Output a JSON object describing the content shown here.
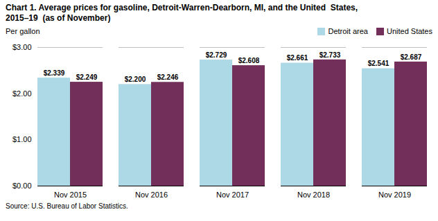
{
  "chart_data": {
    "type": "bar",
    "title": "Chart 1. Average prices for gasoline, Detroit-Warren-Dearborn, MI, and the United  States,\n2015–19  (as of November)",
    "y_label": "Per gallon",
    "source": "Source: U.S. Bureau of Labor Statistics.",
    "categories": [
      "Nov 2015",
      "Nov 2016",
      "Nov 2017",
      "Nov 2018",
      "Nov 2019"
    ],
    "series": [
      {
        "name": "Detroit area",
        "color": "#ADD8E6",
        "values": [
          2.339,
          2.2,
          2.729,
          2.661,
          2.541
        ],
        "value_labels": [
          "$2.339",
          "$2.200",
          "$2.729",
          "$2.661",
          "$2.541"
        ]
      },
      {
        "name": "United States",
        "color": "#722F59",
        "values": [
          2.249,
          2.246,
          2.608,
          2.733,
          2.687
        ],
        "value_labels": [
          "$2.249",
          "$2.246",
          "$2.608",
          "$2.733",
          "$2.687"
        ]
      }
    ],
    "ylim": [
      0,
      3.0
    ],
    "yticks": [
      {
        "value": 0.0,
        "label": "$0.00"
      },
      {
        "value": 1.0,
        "label": "$1.00"
      },
      {
        "value": 2.0,
        "label": "$2.00"
      },
      {
        "value": 3.0,
        "label": "$3.00"
      }
    ],
    "grid": true,
    "legend": "upper right",
    "data_labels": true
  }
}
